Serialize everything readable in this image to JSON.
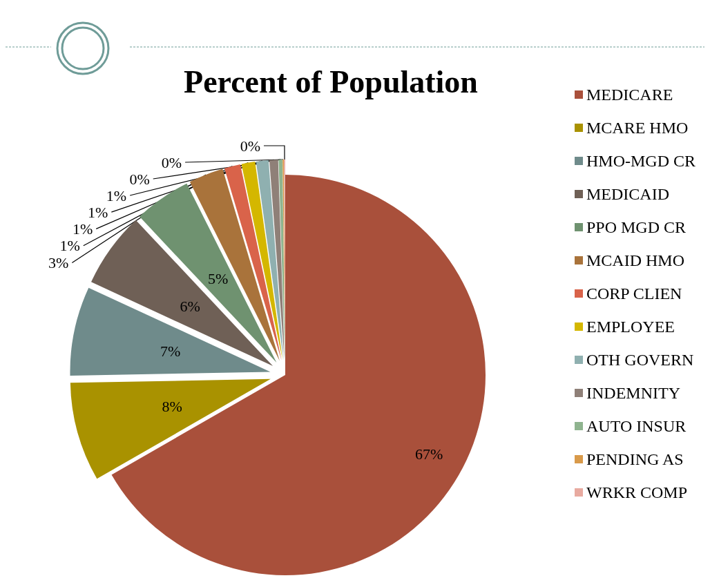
{
  "chart_data": {
    "type": "pie",
    "title": "Percent of Population",
    "categories": [
      "MEDICARE",
      "MCARE HMO",
      "HMO-MGD CR",
      "MEDICAID",
      "PPO MGD CR",
      "MCAID HMO",
      "CORP CLIEN",
      "EMPLOYEE",
      "OTH GOVERN",
      "INDEMNITY",
      "AUTO INSUR",
      "PENDING AS",
      "WRKR COMP"
    ],
    "values": [
      66.7,
      8.0,
      7.2,
      6.1,
      4.6,
      2.8,
      1.3,
      1.1,
      1.0,
      0.7,
      0.3,
      0.1,
      0.1
    ],
    "value_labels": [
      "67%",
      "8%",
      "7%",
      "6%",
      "5%",
      "3%",
      "1%",
      "1%",
      "1%",
      "1%",
      "0%",
      "0%",
      "0%"
    ],
    "colors": [
      "#a9503b",
      "#a99200",
      "#6f8b8b",
      "#6f6056",
      "#6f9270",
      "#a9733b",
      "#d9634a",
      "#d4b700",
      "#8fb0b0",
      "#8f8078",
      "#8fb48f",
      "#d99a4a",
      "#e8aaa0"
    ],
    "legend": "right"
  }
}
